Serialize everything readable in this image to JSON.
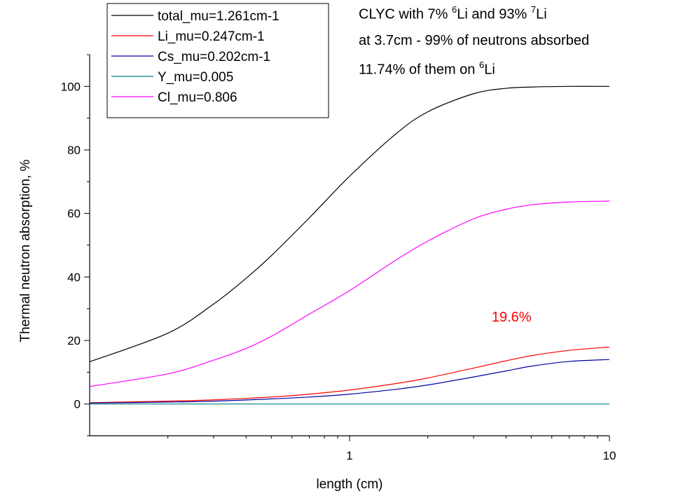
{
  "chart_data": {
    "type": "line",
    "xlabel": "length (cm)",
    "ylabel": "Thermal neutron absorption, %",
    "xscale": "log",
    "xlim": [
      0.1,
      10
    ],
    "ylim": [
      -10,
      110
    ],
    "x_ticks": [
      {
        "value": 1,
        "label": "1"
      },
      {
        "value": 10,
        "label": "10"
      }
    ],
    "y_ticks": [
      {
        "value": 0,
        "label": "0"
      },
      {
        "value": 20,
        "label": "20"
      },
      {
        "value": 40,
        "label": "40"
      },
      {
        "value": 60,
        "label": "60"
      },
      {
        "value": 80,
        "label": "80"
      },
      {
        "value": 100,
        "label": "100"
      }
    ],
    "grid": false,
    "legend_position": "top-left",
    "series": [
      {
        "name": "total_mu=1.261cm-1",
        "color": "#000000",
        "x": [
          0.1,
          0.2,
          0.3,
          0.4,
          0.5,
          0.7,
          1,
          1.5,
          2,
          3,
          4,
          5,
          7,
          10
        ],
        "y": [
          13.3,
          22.3,
          31.5,
          39.6,
          46.7,
          58.6,
          71.7,
          84.9,
          92.0,
          97.7,
          99.4,
          99.8,
          100,
          100
        ]
      },
      {
        "name": "Li_mu=0.247cm-1",
        "color": "#ff0000",
        "x": [
          0.1,
          0.2,
          0.3,
          0.5,
          0.7,
          1,
          1.5,
          2,
          3,
          4,
          5,
          7,
          10
        ],
        "y": [
          0.4,
          0.9,
          1.3,
          2.2,
          3.1,
          4.4,
          6.4,
          8.2,
          11.3,
          13.6,
          15.2,
          16.9,
          17.9
        ]
      },
      {
        "name": "Cs_mu=0.202cm-1",
        "color": "#0000a0",
        "x": [
          0.1,
          0.2,
          0.3,
          0.5,
          0.7,
          1,
          1.5,
          2,
          3,
          4,
          5,
          7,
          10
        ],
        "y": [
          0.3,
          0.6,
          0.9,
          1.6,
          2.2,
          3.1,
          4.6,
          6.0,
          8.5,
          10.4,
          11.9,
          13.4,
          14.0
        ]
      },
      {
        "name": "Y_mu=0.005",
        "color": "#008080",
        "x": [
          0.1,
          1,
          10
        ],
        "y": [
          0,
          0,
          0
        ]
      },
      {
        "name": "Cl_mu=0.806",
        "color": "#ff00ff",
        "x": [
          0.1,
          0.2,
          0.3,
          0.4,
          0.5,
          0.7,
          1,
          1.5,
          2,
          3,
          4,
          5,
          7,
          10
        ],
        "y": [
          5.5,
          9.5,
          13.8,
          17.5,
          21.3,
          28.3,
          35.7,
          45.2,
          51.3,
          58.3,
          61.3,
          62.7,
          63.6,
          63.9
        ]
      }
    ],
    "annotations": [
      {
        "text": "19.6%",
        "color": "#ff0000",
        "x": 4.2,
        "y": 27.5
      }
    ]
  },
  "header_text": {
    "line1": {
      "pre": "CLYC with 7% ",
      "sup1": "6",
      "mid": "Li and 93% ",
      "sup2": "7",
      "post": "Li"
    },
    "line2": "at 3.7cm - 99% of neutrons absorbed",
    "line3": {
      "pre": "11.74% of them on ",
      "sup": "6",
      "post": "Li"
    }
  }
}
